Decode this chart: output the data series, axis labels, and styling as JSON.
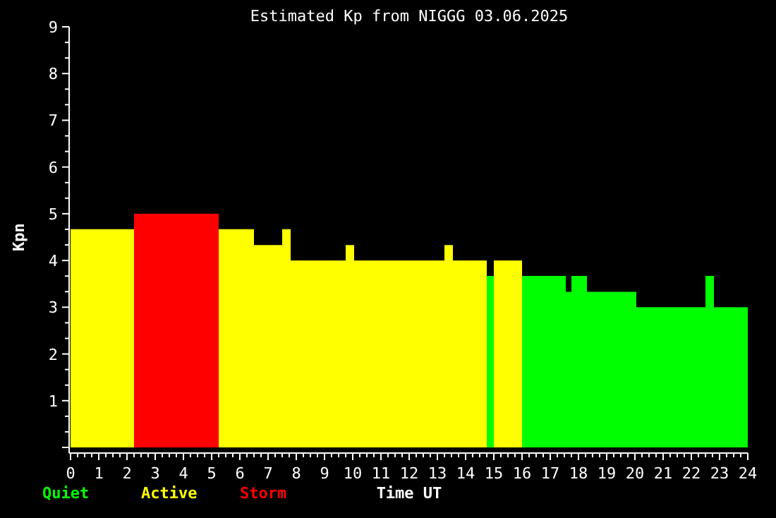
{
  "chart_data": {
    "type": "histogram",
    "title": "Estimated Kp from NIGGG 03.06.2025",
    "xlabel": "Time UT",
    "ylabel": "Kpn",
    "bins": [
      0,
      2.25,
      5.25,
      6.5,
      7.5,
      7.8,
      9.75,
      10.05,
      13.25,
      13.55,
      14.75,
      15,
      16,
      17.55,
      17.75,
      18.3,
      20.05,
      22.5,
      22.8,
      24
    ],
    "series": [
      {
        "name": "Quiet",
        "color": "#00ff00",
        "values": [
          null,
          null,
          null,
          null,
          null,
          null,
          null,
          null,
          null,
          null,
          3.67,
          null,
          3.67,
          3.33,
          3.67,
          3.33,
          3,
          3.67,
          3
        ]
      },
      {
        "name": "Active",
        "color": "#ffff00",
        "values": [
          4.67,
          null,
          4.67,
          4.33,
          4.67,
          4,
          4.33,
          4,
          4.33,
          4,
          null,
          4,
          null,
          null,
          null,
          null,
          null,
          null,
          null
        ]
      },
      {
        "name": "Storm",
        "color": "#ff0000",
        "values": [
          null,
          5,
          null,
          null,
          null,
          null,
          null,
          null,
          null,
          null,
          null,
          null,
          null,
          null,
          null,
          null,
          null,
          null,
          null
        ]
      }
    ],
    "xlim": [
      0,
      24
    ],
    "xticks": [
      0,
      1,
      2,
      3,
      4,
      5,
      6,
      7,
      8,
      9,
      10,
      11,
      12,
      13,
      14,
      15,
      16,
      17,
      18,
      19,
      20,
      21,
      22,
      23,
      24
    ],
    "ylim": [
      0,
      9
    ],
    "yticks": [
      {
        "value": 0,
        "label": null
      },
      1,
      2,
      3,
      4,
      5,
      6,
      7,
      8,
      9
    ],
    "grid": false,
    "legend": "bottom left"
  }
}
